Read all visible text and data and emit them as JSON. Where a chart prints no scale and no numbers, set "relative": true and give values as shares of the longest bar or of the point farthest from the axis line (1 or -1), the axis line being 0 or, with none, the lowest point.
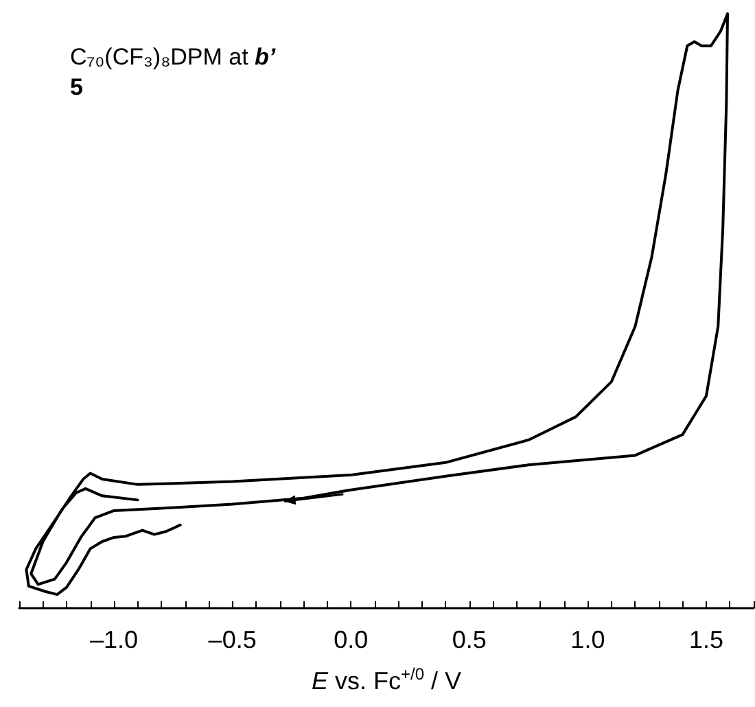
{
  "chart_data": {
    "type": "line",
    "title": "C₇₀(CF₃)₈DPM at b’",
    "subtitle": "5",
    "xlabel": "E vs. Fc$^{+/0}$ / V",
    "relative": true,
    "marker": "none",
    "line_style": "solid",
    "grid": false,
    "tick_labels": "x",
    "xlim": [
      -1.4,
      1.7
    ],
    "xticks": [
      {
        "value": -1.4,
        "label": null
      },
      {
        "value": -1.3,
        "label": null
      },
      {
        "value": -1.2,
        "label": null
      },
      {
        "value": -1.1,
        "label": null
      },
      {
        "value": -1,
        "label": "–1.0"
      },
      {
        "value": -0.9,
        "label": null
      },
      {
        "value": -0.8,
        "label": null
      },
      {
        "value": -0.7,
        "label": null
      },
      {
        "value": -0.6,
        "label": null
      },
      {
        "value": -0.5,
        "label": "–0.5"
      },
      {
        "value": -0.4,
        "label": null
      },
      {
        "value": -0.3,
        "label": null
      },
      {
        "value": -0.2,
        "label": null
      },
      {
        "value": -0.1,
        "label": null
      },
      {
        "value": 0,
        "label": "0.0"
      },
      {
        "value": 0.1,
        "label": null
      },
      {
        "value": 0.2,
        "label": null
      },
      {
        "value": 0.3,
        "label": null
      },
      {
        "value": 0.4,
        "label": null
      },
      {
        "value": 0.5,
        "label": "0.5"
      },
      {
        "value": 0.6,
        "label": null
      },
      {
        "value": 0.7,
        "label": null
      },
      {
        "value": 0.8,
        "label": null
      },
      {
        "value": 0.9,
        "label": null
      },
      {
        "value": 1,
        "label": "1.0"
      },
      {
        "value": 1.1,
        "label": null
      },
      {
        "value": 1.2,
        "label": null
      },
      {
        "value": 1.3,
        "label": null
      },
      {
        "value": 1.4,
        "label": null
      },
      {
        "value": 1.5,
        "label": "1.5"
      },
      {
        "value": 1.6,
        "label": null
      },
      {
        "value": 1.7,
        "label": null
      }
    ],
    "series": [
      {
        "color": "#000000",
        "x": [
          -0.72,
          -0.78,
          -0.83,
          -0.88,
          -0.95,
          -1.0,
          -1.05,
          -1.1,
          -1.15,
          -1.2,
          -1.24,
          -1.29,
          -1.36,
          -1.37,
          -1.33,
          -1.25,
          -1.18,
          -1.13,
          -1.1,
          -1.05,
          -0.9,
          -0.5,
          0,
          0.4,
          0.75,
          0.95,
          1.1,
          1.2,
          1.27,
          1.33,
          1.38,
          1.42,
          1.45,
          1.48,
          1.52,
          1.56,
          1.59,
          1.585,
          1.57,
          1.55,
          1.5,
          1.4,
          1.2,
          0.75,
          0.4,
          0,
          -0.2,
          -0.5,
          -0.8,
          -1.0,
          -1.08,
          -1.14,
          -1.2,
          -1.25,
          -1.32,
          -1.35,
          -1.3,
          -1.22,
          -1.16,
          -1.12,
          -1.05,
          -0.9
        ],
        "values": [
          0.14,
          0.129,
          0.124,
          0.131,
          0.121,
          0.119,
          0.112,
          0.1,
          0.065,
          0.035,
          0.023,
          0.028,
          0.037,
          0.065,
          0.1,
          0.147,
          0.189,
          0.217,
          0.227,
          0.217,
          0.208,
          0.213,
          0.224,
          0.245,
          0.283,
          0.322,
          0.381,
          0.474,
          0.591,
          0.731,
          0.871,
          0.946,
          0.953,
          0.946,
          0.946,
          0.97,
          1.0,
          0.848,
          0.638,
          0.474,
          0.357,
          0.292,
          0.257,
          0.241,
          0.222,
          0.199,
          0.185,
          0.175,
          0.168,
          0.164,
          0.152,
          0.119,
          0.077,
          0.049,
          0.04,
          0.058,
          0.112,
          0.166,
          0.194,
          0.201,
          0.189,
          0.182
        ]
      }
    ]
  }
}
